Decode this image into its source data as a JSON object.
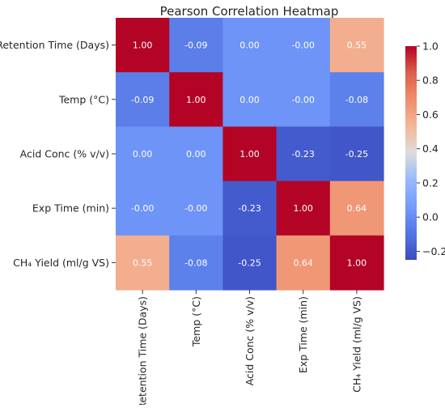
{
  "chart_data": {
    "type": "heatmap",
    "title": "Pearson Correlation Heatmap",
    "row_labels": [
      "Retention Time (Days)",
      "Temp (°C)",
      "Acid Conc (% v/v)",
      "Exp Time (min)",
      "CH₄ Yield (ml/g VS)"
    ],
    "col_labels": [
      "Retention Time (Days)",
      "Temp (°C)",
      "Acid Conc (% v/v)",
      "Exp Time (min)",
      "CH₄ Yield (ml/g VS)"
    ],
    "values": [
      [
        1.0,
        -0.09,
        0.0,
        -0.0,
        0.55
      ],
      [
        -0.09,
        1.0,
        0.0,
        -0.0,
        -0.08
      ],
      [
        0.0,
        0.0,
        1.0,
        -0.23,
        -0.25
      ],
      [
        -0.0,
        -0.0,
        -0.23,
        1.0,
        0.64
      ],
      [
        0.55,
        -0.08,
        -0.25,
        0.64,
        1.0
      ]
    ],
    "cell_labels": [
      [
        "1.00",
        "-0.09",
        "0.00",
        "-0.00",
        "0.55"
      ],
      [
        "-0.09",
        "1.00",
        "0.00",
        "-0.00",
        "-0.08"
      ],
      [
        "0.00",
        "0.00",
        "1.00",
        "-0.23",
        "-0.25"
      ],
      [
        "-0.00",
        "-0.00",
        "-0.23",
        "1.00",
        "0.64"
      ],
      [
        "0.55",
        "-0.08",
        "-0.25",
        "0.64",
        "1.00"
      ]
    ],
    "colorbar": {
      "min": -0.25,
      "max": 1.0,
      "ticks": [
        -0.2,
        0.0,
        0.2,
        0.4,
        0.6,
        0.8,
        1.0
      ],
      "tick_labels": [
        "−0.2",
        "0.0",
        "0.2",
        "0.4",
        "0.6",
        "0.8",
        "1.0"
      ]
    },
    "colormap": "coolwarm"
  }
}
